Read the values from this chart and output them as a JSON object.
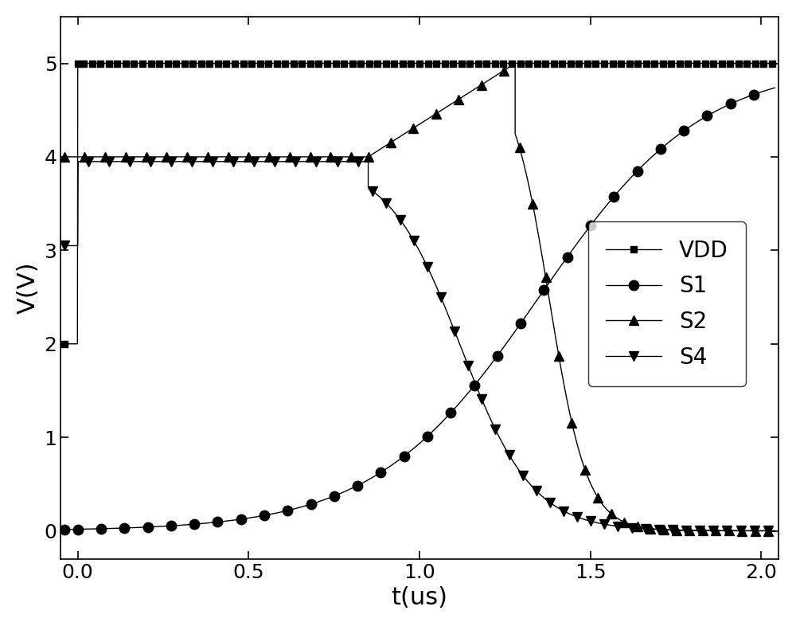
{
  "title": "",
  "xlabel": "t(us)",
  "ylabel": "V(V)",
  "xlim": [
    -0.05,
    2.05
  ],
  "ylim": [
    -0.3,
    5.5
  ],
  "xticks": [
    0.0,
    0.5,
    1.0,
    1.5,
    2.0
  ],
  "yticks": [
    0,
    1,
    2,
    3,
    4,
    5
  ],
  "line_color": "#000000",
  "background_color": "#ffffff",
  "legend_labels": [
    "VDD",
    "S1",
    "S2",
    "S4"
  ],
  "xlabel_fontsize": 22,
  "ylabel_fontsize": 22,
  "tick_fontsize": 18,
  "legend_fontsize": 20,
  "vdd_step_x": 0.0,
  "vdd_step_y1": 2.0,
  "vdd_flat_y": 5.0,
  "s1_k": 4.2,
  "s1_t0": 1.35,
  "s1_ymax": 5.0,
  "s2_flat_y": 4.0,
  "s2_flat_end": 0.85,
  "s2_peak_t": 1.28,
  "s2_peak_v": 4.95,
  "s2_drop_k": 18.0,
  "s2_drop_t0": 1.38,
  "s4_pre_y": 3.05,
  "s4_flat_y": 3.95,
  "s4_flat_end": 0.85,
  "s4_drop_k": 9.5,
  "s4_drop_t0": 1.12
}
